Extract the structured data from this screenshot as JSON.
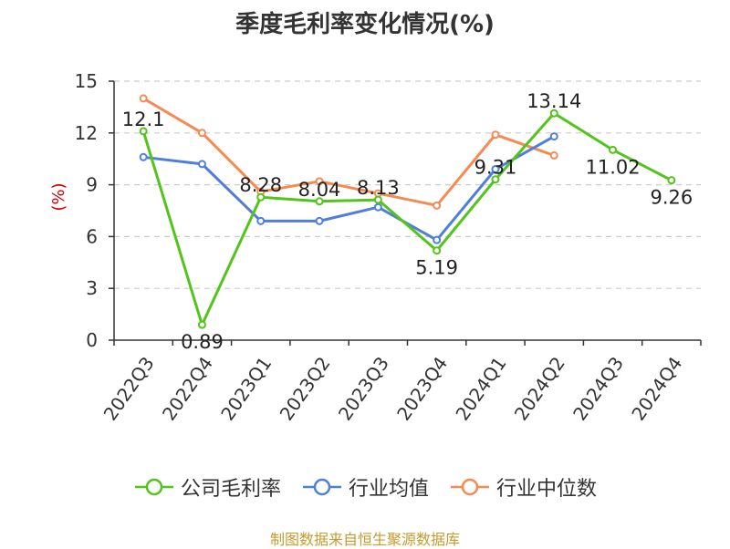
{
  "title": "季度毛利率变化情况(%)",
  "source": "制图数据来自恒生聚源数据库",
  "colors": {
    "公司毛利率": "#52c41a",
    "行业均值": "#4f7fdb",
    "行业中位数": "#f58a53",
    "grid": "#cccccc",
    "axis": "#333333",
    "unit": "#d00000"
  },
  "chart_data": {
    "type": "line",
    "categories": [
      "2022Q3",
      "2022Q4",
      "2023Q1",
      "2023Q2",
      "2023Q3",
      "2023Q4",
      "2024Q1",
      "2024Q2",
      "2024Q3",
      "2024Q4"
    ],
    "ylabel": "(%)",
    "ylim": [
      0,
      15
    ],
    "yticks": [
      0,
      3,
      6,
      9,
      12,
      15
    ],
    "grid": true,
    "legend_position": "bottom",
    "series": [
      {
        "name": "公司毛利率",
        "values": [
          12.1,
          0.89,
          8.28,
          8.04,
          8.13,
          5.19,
          9.31,
          13.14,
          11.02,
          9.26
        ],
        "labels": [
          "12.1",
          "0.89",
          "8.28",
          "8.04",
          "8.13",
          "5.19",
          "9.31",
          "13.14",
          "11.02",
          "9.26"
        ]
      },
      {
        "name": "行业均值",
        "values": [
          10.6,
          10.2,
          6.9,
          6.9,
          7.7,
          5.8,
          9.9,
          11.8,
          null,
          null
        ]
      },
      {
        "name": "行业中位数",
        "values": [
          14.0,
          12.0,
          8.6,
          9.2,
          8.5,
          7.8,
          11.9,
          10.7,
          null,
          null
        ]
      }
    ]
  }
}
